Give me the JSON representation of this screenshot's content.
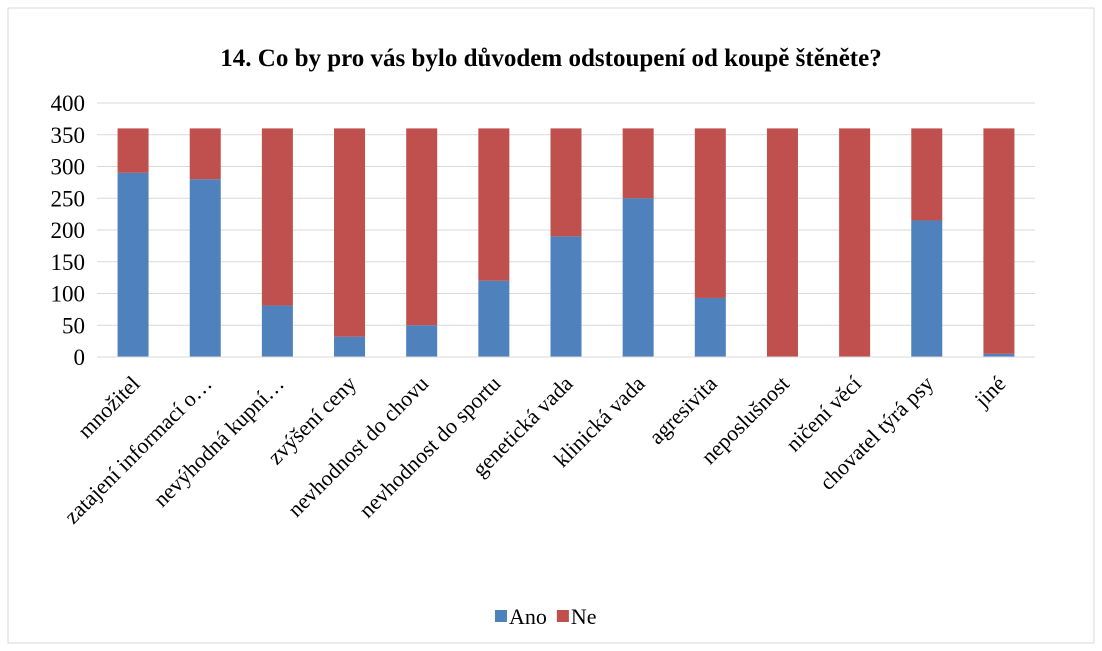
{
  "chart_data": {
    "type": "stacked_bar",
    "title": "14. Co by pro vás bylo důvodem odstoupení od koupě štěněte?",
    "categories": [
      "množitel",
      "zatajení informací o…",
      "nevýhodná kupní…",
      "zvýšení ceny",
      "nevhodnost do chovu",
      "nevhodnost do sportu",
      "genetická vada",
      "klinická vada",
      "agresivita",
      "neposlušnost",
      "ničení věcí",
      "chovatel týrá psy",
      "jiné"
    ],
    "series": [
      {
        "name": "Ano",
        "color": "#4f81bd",
        "values": [
          290,
          280,
          81,
          32,
          50,
          120,
          190,
          250,
          93,
          0,
          0,
          215,
          5
        ]
      },
      {
        "name": "Ne",
        "color": "#c0504d",
        "values": [
          70,
          80,
          279,
          328,
          310,
          240,
          170,
          110,
          267,
          360,
          360,
          145,
          355
        ]
      }
    ],
    "ylim": [
      0,
      400
    ],
    "yticks": [
      0,
      50,
      100,
      150,
      200,
      250,
      300,
      350,
      400
    ],
    "grid": true,
    "legend": "bottom"
  }
}
